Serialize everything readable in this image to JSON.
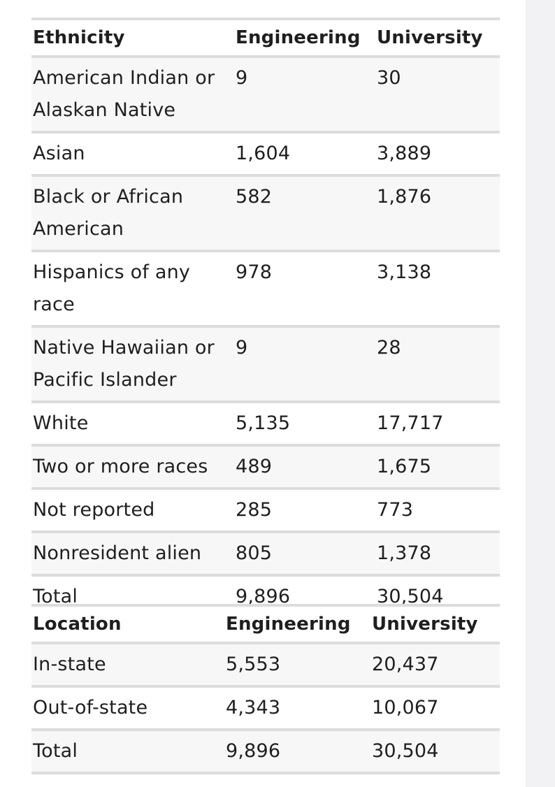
{
  "ethnicity_table": {
    "headers": [
      "Ethnicity",
      "Engineering",
      "University"
    ],
    "rows": [
      [
        "American Indian or Alaskan Native",
        "9",
        "30"
      ],
      [
        "Asian",
        "1,604",
        "3,889"
      ],
      [
        "Black or African American",
        "582",
        "1,876"
      ],
      [
        "Hispanics of any race",
        "978",
        "3,138"
      ],
      [
        "Native Hawaiian or Pacific Islander",
        "9",
        "28"
      ],
      [
        "White",
        "5,135",
        "17,717"
      ],
      [
        "Two or more races",
        "489",
        "1,675"
      ],
      [
        "Not reported",
        "285",
        "773"
      ],
      [
        "Nonresident alien",
        "805",
        "1,378"
      ],
      [
        "Total",
        "9,896",
        "30,504"
      ]
    ]
  },
  "location_table": {
    "headers": [
      "Location",
      "Engineering",
      "University"
    ],
    "rows": [
      [
        "In-state",
        "5,553",
        "20,437"
      ],
      [
        "Out-of-state",
        "4,343",
        "10,067"
      ],
      [
        "Total",
        "9,896",
        "30,504"
      ]
    ]
  }
}
